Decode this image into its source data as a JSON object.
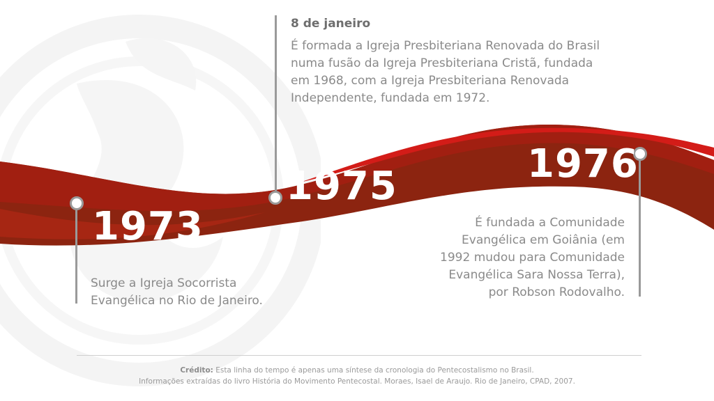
{
  "colors": {
    "ribbon_dark": "#8c2410",
    "ribbon_red": "#b01c12",
    "ribbon_bright": "#d31c18",
    "line_gray": "#9a9a9a",
    "text_gray": "#8a8a8a"
  },
  "events": [
    {
      "year": "1973",
      "date": "",
      "description": "Surge a Igreja Socorrista\nEvangélica no Rio de Janeiro."
    },
    {
      "year": "1975",
      "date": "8 de janeiro",
      "description": "É formada a Igreja Presbiteriana Renovada do Brasil\nnuma fusão da Igreja Presbiteriana Cristã, fundada\nem 1968, com a Igreja Presbiteriana Renovada\nIndependente, fundada em 1972."
    },
    {
      "year": "1976",
      "date": "",
      "description": "É fundada a Comunidade\nEvangélica em Goiânia (em\n1992 mudou para Comunidade\nEvangélica Sara Nossa Terra),\npor Robson Rodovalho."
    }
  ],
  "footer": {
    "credit_label": "Crédito:",
    "credit_text": " Esta linha do tempo é apenas uma síntese da cronologia do Pentecostalismo no Brasil.",
    "source_text": "Informações extraídas do livro História do Movimento Pentecostal. Moraes, Isael de Araujo. Rio de Janeiro, CPAD, 2007."
  },
  "watermark_icon": "flame-logo-icon"
}
